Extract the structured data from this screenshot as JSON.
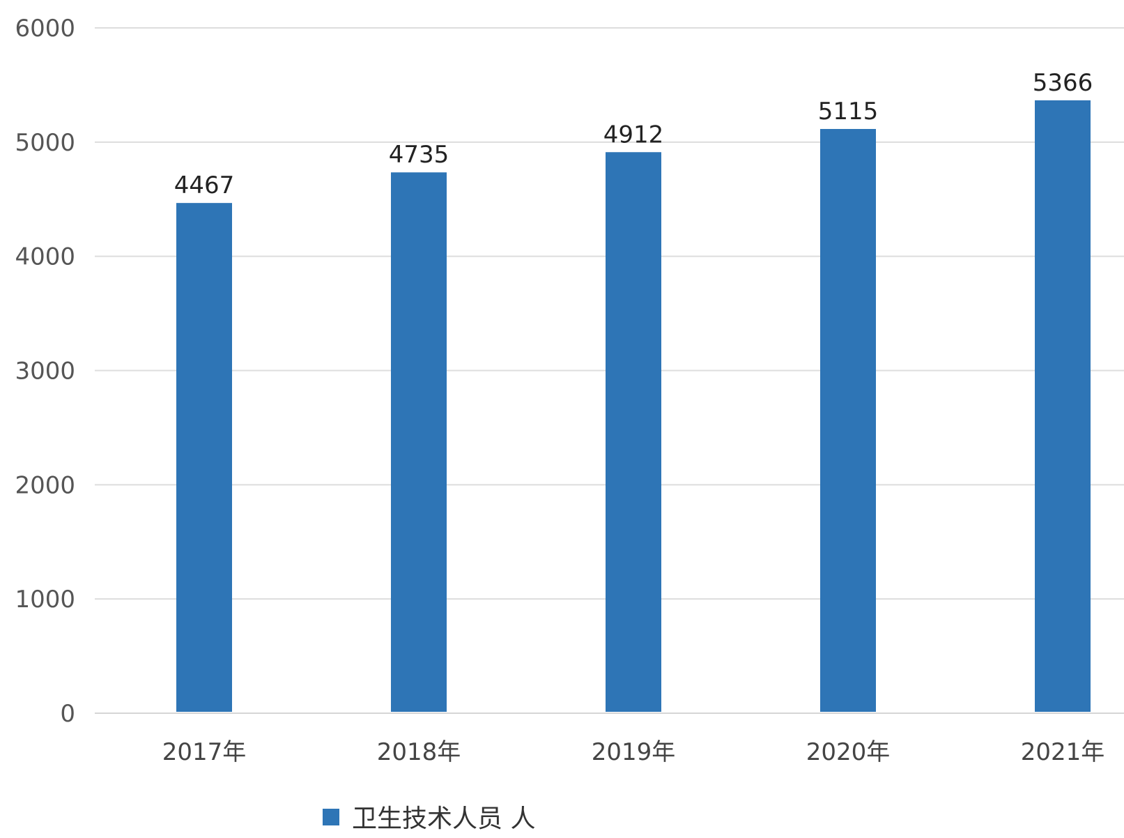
{
  "chart_data": {
    "type": "bar",
    "categories": [
      "2017年",
      "2018年",
      "2019年",
      "2020年",
      "2021年"
    ],
    "series": [
      {
        "name": "卫生技术人员 人",
        "values": [
          4467,
          4735,
          4912,
          5115,
          5366
        ],
        "color": "#2E75B6"
      }
    ],
    "ylim": [
      0,
      6000
    ],
    "yticks": [
      0,
      1000,
      2000,
      3000,
      4000,
      5000,
      6000
    ],
    "grid": true,
    "legend_position": "bottom"
  }
}
